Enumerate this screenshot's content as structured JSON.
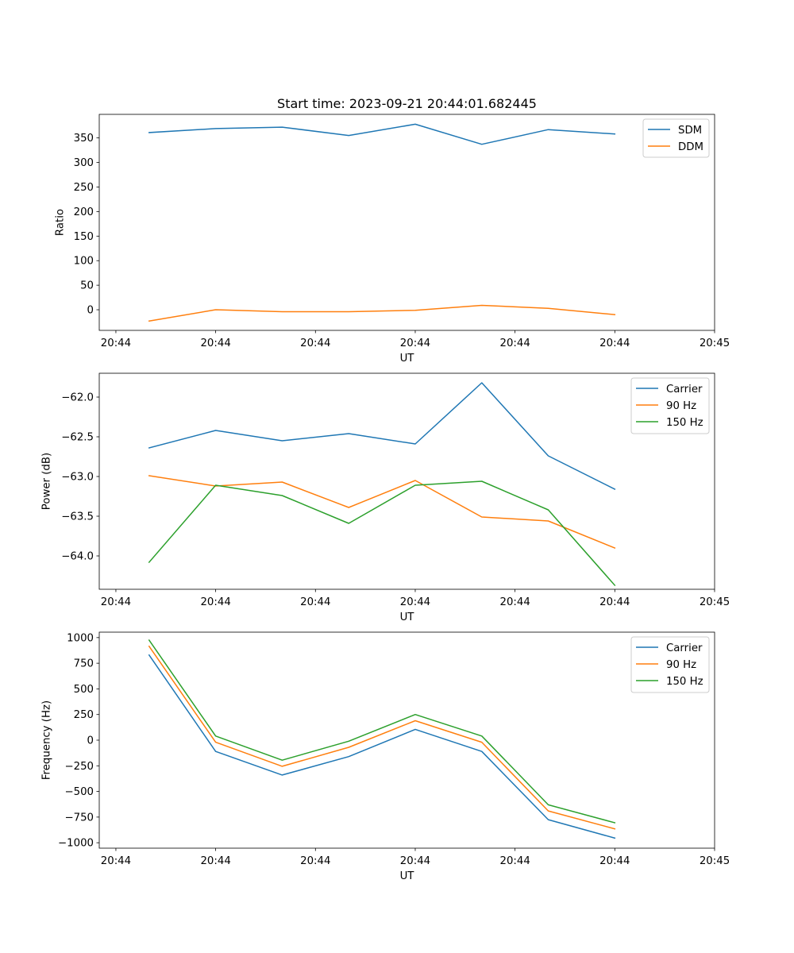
{
  "figure_title": "Start time: 2023-09-21 20:44:01.682445",
  "chart_data": [
    {
      "type": "line",
      "title": "Start time: 2023-09-21 20:44:01.682445",
      "xlabel": "UT",
      "ylabel": "Ratio",
      "x": [
        1,
        2,
        3,
        4,
        5,
        6,
        7,
        8
      ],
      "xlim": [
        0.25,
        9.5
      ],
      "x_ticks": [
        0.5,
        2,
        3.5,
        5,
        6.5,
        8,
        9.5
      ],
      "x_tick_labels": [
        "20:44",
        "20:44",
        "20:44",
        "20:44",
        "20:44",
        "20:44",
        "20:45"
      ],
      "ylim": [
        -42,
        398
      ],
      "y_ticks": [
        0,
        50,
        100,
        150,
        200,
        250,
        300,
        350
      ],
      "y_tick_labels": [
        "0",
        "50",
        "100",
        "150",
        "200",
        "250",
        "300",
        "350"
      ],
      "legend_position": "top-right",
      "series": [
        {
          "name": "SDM",
          "color": "#1f77b4",
          "values": [
            361,
            369,
            372,
            355,
            378,
            337,
            367,
            358
          ]
        },
        {
          "name": "DDM",
          "color": "#ff7f0e",
          "values": [
            -23,
            0,
            -4,
            -4,
            -1,
            9,
            3,
            -10
          ]
        }
      ]
    },
    {
      "type": "line",
      "title": "",
      "xlabel": "UT",
      "ylabel": "Power (dB)",
      "x": [
        1,
        2,
        3,
        4,
        5,
        6,
        7,
        8
      ],
      "xlim": [
        0.25,
        9.5
      ],
      "x_ticks": [
        0.5,
        2,
        3.5,
        5,
        6.5,
        8,
        9.5
      ],
      "x_tick_labels": [
        "20:44",
        "20:44",
        "20:44",
        "20:44",
        "20:44",
        "20:44",
        "20:45"
      ],
      "ylim": [
        -64.42,
        -61.7
      ],
      "y_ticks": [
        -64.0,
        -63.5,
        -63.0,
        -62.5,
        -62.0
      ],
      "y_tick_labels": [
        "−64.0",
        "−63.5",
        "−63.0",
        "−62.5",
        "−62.0"
      ],
      "legend_position": "top-right",
      "series": [
        {
          "name": "Carrier",
          "color": "#1f77b4",
          "values": [
            -62.64,
            -62.42,
            -62.55,
            -62.46,
            -62.59,
            -61.82,
            -62.74,
            -63.16
          ]
        },
        {
          "name": "90 Hz",
          "color": "#ff7f0e",
          "values": [
            -62.99,
            -63.12,
            -63.07,
            -63.39,
            -63.05,
            -63.51,
            -63.56,
            -63.9
          ]
        },
        {
          "name": "150 Hz",
          "color": "#2ca02c",
          "values": [
            -64.08,
            -63.11,
            -63.24,
            -63.59,
            -63.11,
            -63.06,
            -63.42,
            -64.37
          ]
        }
      ]
    },
    {
      "type": "line",
      "title": "",
      "xlabel": "UT",
      "ylabel": "Frequency (Hz)",
      "x": [
        1,
        2,
        3,
        4,
        5,
        6,
        7,
        8
      ],
      "xlim": [
        0.25,
        9.5
      ],
      "x_ticks": [
        0.5,
        2,
        3.5,
        5,
        6.5,
        8,
        9.5
      ],
      "x_tick_labels": [
        "20:44",
        "20:44",
        "20:44",
        "20:44",
        "20:44",
        "20:44",
        "20:45"
      ],
      "ylim": [
        -1053,
        1053
      ],
      "y_ticks": [
        -1000,
        -750,
        -500,
        -250,
        0,
        250,
        500,
        750,
        1000
      ],
      "y_tick_labels": [
        "−1000",
        "−750",
        "−500",
        "−250",
        "0",
        "250",
        "500",
        "750",
        "1000"
      ],
      "legend_position": "top-right",
      "series": [
        {
          "name": "Carrier",
          "color": "#1f77b4",
          "values": [
            830,
            -110,
            -340,
            -160,
            105,
            -110,
            -775,
            -955
          ]
        },
        {
          "name": "90 Hz",
          "color": "#ff7f0e",
          "values": [
            915,
            -20,
            -255,
            -70,
            190,
            -20,
            -690,
            -865
          ]
        },
        {
          "name": "150 Hz",
          "color": "#2ca02c",
          "values": [
            975,
            40,
            -195,
            -10,
            250,
            40,
            -630,
            -805
          ]
        }
      ]
    }
  ]
}
